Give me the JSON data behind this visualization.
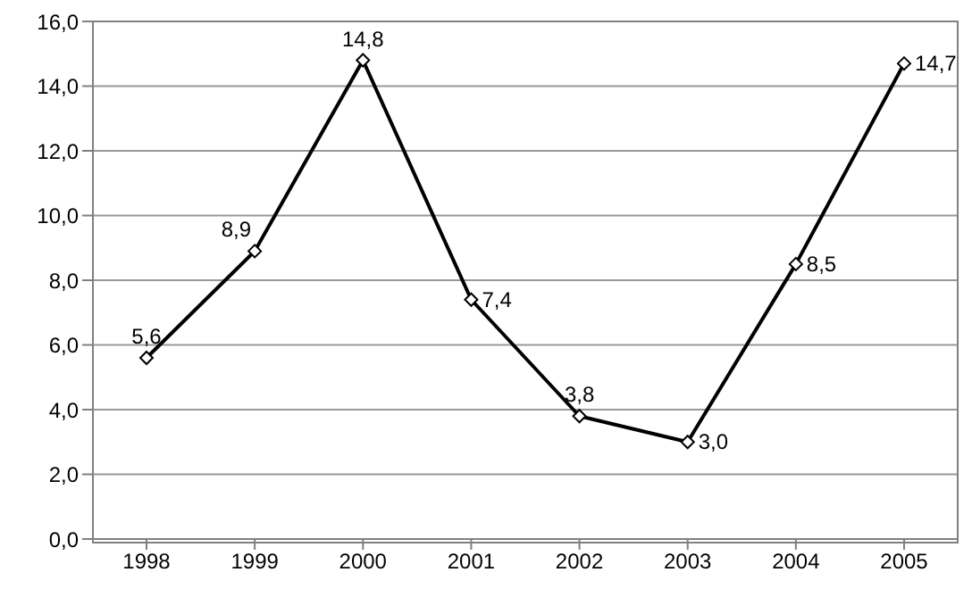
{
  "chart_data": {
    "type": "line",
    "categories": [
      "1998",
      "1999",
      "2000",
      "2001",
      "2002",
      "2003",
      "2004",
      "2005"
    ],
    "series": [
      {
        "color": "#000000",
        "values": [
          5.6,
          8.9,
          14.8,
          7.4,
          3.8,
          3.0,
          8.5,
          14.7
        ],
        "value_labels": [
          "5,6",
          "8,9",
          "14,8",
          "7,4",
          "3,8",
          "3,0",
          "8,5",
          "14,7"
        ]
      }
    ],
    "ylim": [
      0,
      16
    ],
    "yticks": [
      {
        "value": 0,
        "label": "0,0"
      },
      {
        "value": 2,
        "label": "2,0"
      },
      {
        "value": 4,
        "label": "4,0"
      },
      {
        "value": 6,
        "label": "6,0"
      },
      {
        "value": 8,
        "label": "8,0"
      },
      {
        "value": 10,
        "label": "10,0"
      },
      {
        "value": 12,
        "label": "12,0"
      },
      {
        "value": 14,
        "label": "14,0"
      },
      {
        "value": 16,
        "label": "16,0"
      }
    ],
    "grid": "y",
    "marker": "diamond",
    "line_style": "solid"
  }
}
